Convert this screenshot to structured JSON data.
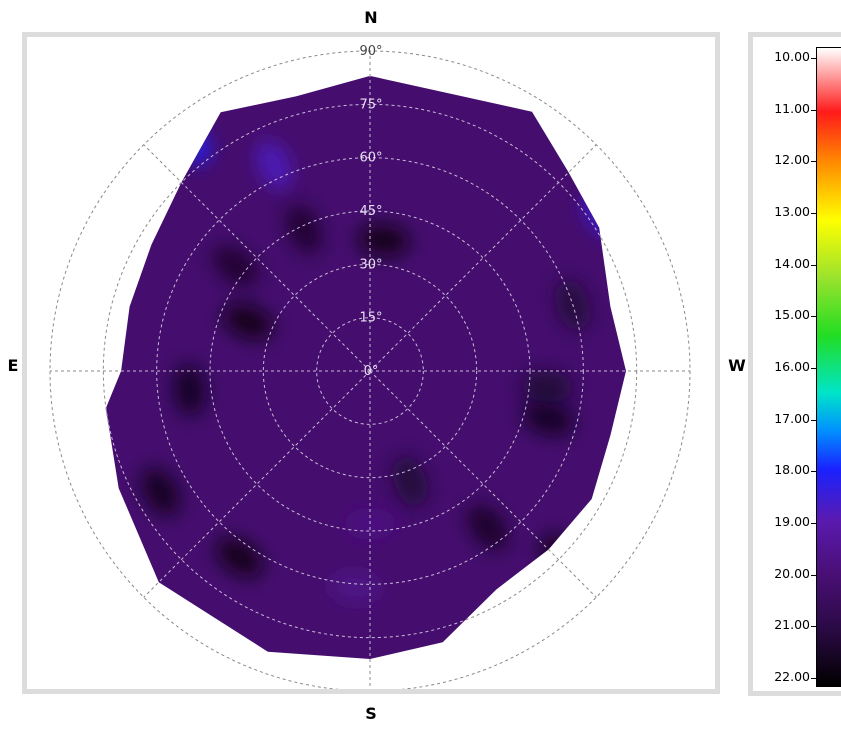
{
  "compass": {
    "north": "N",
    "south": "S",
    "east": "E",
    "west": "W"
  },
  "chart_data": {
    "type": "heatmap",
    "subtype": "polar-contour",
    "radial_axis": {
      "range": [
        0,
        90
      ],
      "tick_labels": [
        "0°",
        "15°",
        "30°",
        "45°",
        "60°",
        "75°",
        "90°"
      ],
      "tick_values": [
        0,
        15,
        30,
        45,
        60,
        75,
        90
      ],
      "grid": "dashed",
      "spokes_deg": [
        0,
        45,
        90,
        135,
        180,
        225,
        270,
        315
      ]
    },
    "colorbar": {
      "range": [
        10,
        22
      ],
      "reversed": true,
      "placement": "right",
      "tick_labels": [
        "10.00",
        "11.00",
        "12.00",
        "13.00",
        "14.00",
        "15.00",
        "16.00",
        "17.00",
        "18.00",
        "19.00",
        "20.00",
        "21.00",
        "22.00"
      ],
      "tick_values": [
        10,
        11,
        12,
        13,
        14,
        15,
        16,
        17,
        18,
        19,
        20,
        21,
        22
      ],
      "colors": {
        "10": "#ffffff",
        "11": "#ff1a1a",
        "12": "#ff8c00",
        "13": "#ffff00",
        "14": "#9be22d",
        "15": "#22dd22",
        "16": "#00e5c8",
        "17": "#0090ff",
        "18": "#1a22ff",
        "19": "#5a1ab0",
        "20": "#4b0f78",
        "21": "#2b0a45",
        "22": "#000000"
      }
    },
    "boundary": {
      "azimuth_deg": [
        0,
        32,
        45,
        58,
        75,
        90,
        105,
        120,
        135,
        150,
        165,
        180,
        200,
        225,
        245,
        262,
        270,
        285,
        300,
        315,
        330,
        345
      ],
      "max_radius_deg": [
        83,
        86,
        79,
        76,
        70,
        72,
        70,
        72,
        71,
        71,
        79,
        81,
        84,
        84,
        78,
        75,
        70,
        70,
        71,
        75,
        84,
        80
      ]
    },
    "dominant_value": 20.2,
    "patches": [
      {
        "az": 322,
        "r": 82,
        "value": 18.2
      },
      {
        "az": 335,
        "r": 64,
        "value": 18.8
      },
      {
        "az": 56,
        "r": 79,
        "value": 18.5
      },
      {
        "az": 292,
        "r": 37,
        "value": 21.8
      },
      {
        "az": 264,
        "r": 51,
        "value": 21.6
      },
      {
        "az": 240,
        "r": 68,
        "value": 21.7
      },
      {
        "az": 215,
        "r": 64,
        "value": 21.8
      },
      {
        "az": 134,
        "r": 75,
        "value": 21.7
      },
      {
        "az": 143,
        "r": 55,
        "value": 21.5
      },
      {
        "az": 6,
        "r": 37,
        "value": 21.8
      },
      {
        "az": 335,
        "r": 44,
        "value": 21.4
      },
      {
        "az": 308,
        "r": 48,
        "value": 21.4
      },
      {
        "az": 160,
        "r": 33,
        "value": 21.3
      },
      {
        "az": 180,
        "r": 43,
        "value": 19.8
      },
      {
        "az": 184,
        "r": 61,
        "value": 19.7
      },
      {
        "az": 95,
        "r": 50,
        "value": 21.3
      },
      {
        "az": 72,
        "r": 60,
        "value": 21.2
      },
      {
        "az": 105,
        "r": 52,
        "value": 21.6
      }
    ]
  }
}
